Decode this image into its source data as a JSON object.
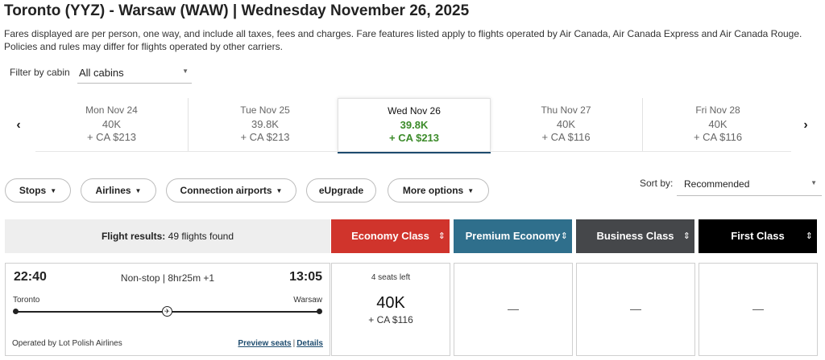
{
  "header": {
    "title": "Toronto (YYZ) - Warsaw (WAW)  |  Wednesday November 26, 2025",
    "disclaimer": "Fares displayed are per person, one way, and include all taxes, fees and charges. Fare features listed apply to flights operated by Air Canada, Air Canada Express and Air Canada Rouge. Policies and rules may differ for flights operated by other carriers."
  },
  "filter": {
    "label": "Filter by cabin",
    "value": "All cabins"
  },
  "dates": [
    {
      "label": "Mon Nov 24",
      "points": "40K",
      "cash": "+ CA $213"
    },
    {
      "label": "Tue Nov 25",
      "points": "39.8K",
      "cash": "+ CA $213"
    },
    {
      "label": "Wed Nov 26",
      "points": "39.8K",
      "cash": "+ CA $213",
      "selected": true
    },
    {
      "label": "Thu Nov 27",
      "points": "40K",
      "cash": "+ CA $116"
    },
    {
      "label": "Fri Nov 28",
      "points": "40K",
      "cash": "+ CA $116"
    }
  ],
  "filters": {
    "stops": "Stops",
    "airlines": "Airlines",
    "connection_airports": "Connection airports",
    "eupgrade": "eUpgrade",
    "more_options": "More options"
  },
  "sort": {
    "label": "Sort by:",
    "value": "Recommended"
  },
  "results": {
    "label": "Flight results:",
    "count_text": "49 flights found"
  },
  "cabins": [
    {
      "name": "Economy Class",
      "color": "#d0342c"
    },
    {
      "name": "Premium Economy",
      "color": "#2f6f8c"
    },
    {
      "name": "Business Class",
      "color": "#45474a"
    },
    {
      "name": "First Class",
      "color": "#000000"
    }
  ],
  "flight": {
    "dep_time": "22:40",
    "arr_time": "13:05",
    "summary": "Non-stop | 8hr25m +1",
    "origin": "Toronto",
    "destination": "Warsaw",
    "operator": "Operated by Lot Polish Airlines",
    "preview_seats": "Preview seats",
    "separator": "|",
    "details": "Details",
    "fares": {
      "economy": {
        "seats_left": "4 seats left",
        "points": "40K",
        "cash": "+ CA $116"
      },
      "premium_economy": "—",
      "business": "—",
      "first": "—"
    }
  },
  "icons": {
    "prev": "chevron-left",
    "next": "chevron-right",
    "dropdown": "caret-down",
    "sort": "sort-arrows",
    "plane": "airplane"
  }
}
